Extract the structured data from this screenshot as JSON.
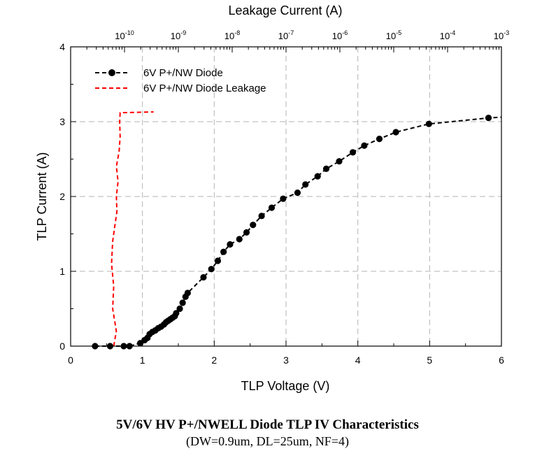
{
  "chart_data": {
    "type": "scatter",
    "title": "5V/6V HV P+/NWELL Diode TLP IV Characteristics",
    "subtitle": "(DW=0.9um, DL=25um, NF=4)",
    "xlabel": "TLP Voltage (V)",
    "ylabel": "TLP Current (A)",
    "x2label": "Leakage Current (A)",
    "xlim": [
      0,
      6
    ],
    "ylim": [
      0,
      4
    ],
    "x2lim_log10": [
      -11,
      -3
    ],
    "x_ticks": [
      "0",
      "1",
      "2",
      "3",
      "4",
      "5",
      "6"
    ],
    "y_ticks": [
      "0",
      "1",
      "2",
      "3",
      "4"
    ],
    "x2_ticks": [
      {
        "base": "10",
        "exp": "-10"
      },
      {
        "base": "10",
        "exp": "-9"
      },
      {
        "base": "10",
        "exp": "-8"
      },
      {
        "base": "10",
        "exp": "-7"
      },
      {
        "base": "10",
        "exp": "-6"
      },
      {
        "base": "10",
        "exp": "-5"
      },
      {
        "base": "10",
        "exp": "-4"
      },
      {
        "base": "10",
        "exp": "-3"
      }
    ],
    "grid": true,
    "legend_position": "top-left",
    "series": [
      {
        "name": "6V P+/NW Diode",
        "color": "#000000",
        "style": "dashed-with-markers",
        "x": [
          0.34,
          0.55,
          0.74,
          0.82,
          0.97,
          1.03,
          1.07,
          1.1,
          1.14,
          1.18,
          1.22,
          1.26,
          1.3,
          1.33,
          1.36,
          1.39,
          1.42,
          1.45,
          1.47,
          1.52,
          1.56,
          1.6,
          1.63,
          1.85,
          1.96,
          2.05,
          2.13,
          2.22,
          2.35,
          2.45,
          2.54,
          2.66,
          2.8,
          2.96,
          3.16,
          3.27,
          3.44,
          3.56,
          3.74,
          3.93,
          4.09,
          4.3,
          4.53,
          4.99,
          5.82
        ],
        "y": [
          0.0,
          0.0,
          0.0,
          0.0,
          0.04,
          0.08,
          0.11,
          0.16,
          0.19,
          0.21,
          0.24,
          0.26,
          0.29,
          0.32,
          0.34,
          0.36,
          0.38,
          0.4,
          0.44,
          0.5,
          0.58,
          0.66,
          0.71,
          0.92,
          1.03,
          1.14,
          1.26,
          1.36,
          1.43,
          1.52,
          1.62,
          1.74,
          1.85,
          1.97,
          2.05,
          2.16,
          2.27,
          2.37,
          2.47,
          2.59,
          2.68,
          2.77,
          2.86,
          2.97,
          3.05
        ]
      },
      {
        "name": "6V P+/NW Diode Leakage",
        "color": "#ff0000",
        "style": "dashed",
        "leakage_log10": [
          -10.2,
          -10.15,
          -10.22,
          -10.2,
          -10.24,
          -10.22,
          -10.18,
          -10.14,
          -10.15,
          -10.12,
          -10.15,
          -10.1,
          -10.08,
          -10.09,
          -10.08,
          -9.46
        ],
        "y": [
          0.0,
          0.2,
          0.5,
          0.8,
          1.1,
          1.4,
          1.6,
          1.8,
          2.0,
          2.2,
          2.4,
          2.6,
          2.8,
          3.0,
          3.12,
          3.13
        ]
      }
    ]
  }
}
